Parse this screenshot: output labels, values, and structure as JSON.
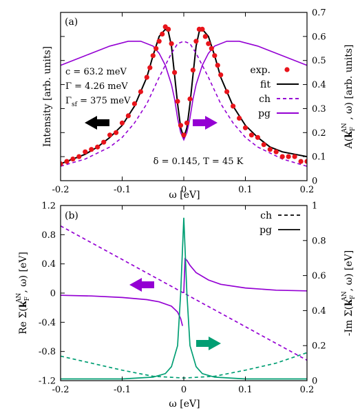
{
  "chart_data": [
    {
      "panel_label": "(a)",
      "type": "line",
      "xlabel": "ω [eV]",
      "ylabel_left": "Intensity [arb. units]",
      "ylabel_right": "A(kF^AN , ω) [arb. units]",
      "ylabel_right_parts": {
        "pre": "A(",
        "k": "k",
        "sub": "F",
        "sup": "AN",
        "post": " , ω) [arb. units]"
      },
      "xlim": [
        -0.2,
        0.2
      ],
      "y2lim": [
        0,
        0.7
      ],
      "x_ticks": [
        "-0.2",
        "-0.1",
        "0",
        "0.1",
        "0.2"
      ],
      "y2_ticks": [
        "0",
        "0.1",
        "0.2",
        "0.3",
        "0.4",
        "0.5",
        "0.6",
        "0.7"
      ],
      "legend": [
        {
          "label": "exp.",
          "style": "points",
          "color": "#e8141b"
        },
        {
          "label": "fit",
          "style": "solid",
          "color": "#000000"
        },
        {
          "label": "ch",
          "style": "dashed",
          "color": "#9400d3"
        },
        {
          "label": "pg",
          "style": "solid",
          "color": "#9400d3"
        }
      ],
      "params": {
        "c": "c = 63.2 meV",
        "gamma": "Γ = 4.26 meV",
        "gamma_sf_pre": "Γ",
        "gamma_sf_sub": "sf",
        "gamma_sf_post": " = 375 meV"
      },
      "annotation": "δ = 0.145, T = 45 K",
      "arrows": [
        {
          "direction": "left",
          "color": "#000000",
          "axis": "left"
        },
        {
          "direction": "right",
          "color": "#9400d3",
          "axis": "right"
        }
      ],
      "series": [
        {
          "name": "fit",
          "color": "#000000",
          "dash": false,
          "x": [
            -0.2,
            -0.18,
            -0.16,
            -0.14,
            -0.12,
            -0.1,
            -0.08,
            -0.06,
            -0.05,
            -0.04,
            -0.03,
            -0.025,
            -0.02,
            -0.015,
            -0.01,
            -0.005,
            0,
            0.005,
            0.01,
            0.015,
            0.02,
            0.025,
            0.03,
            0.04,
            0.05,
            0.06,
            0.08,
            0.1,
            0.12,
            0.14,
            0.16,
            0.18,
            0.2
          ],
          "y": [
            0.07,
            0.09,
            0.11,
            0.14,
            0.18,
            0.23,
            0.31,
            0.43,
            0.52,
            0.6,
            0.63,
            0.62,
            0.56,
            0.44,
            0.32,
            0.22,
            0.18,
            0.22,
            0.32,
            0.44,
            0.56,
            0.62,
            0.63,
            0.6,
            0.52,
            0.43,
            0.31,
            0.23,
            0.18,
            0.14,
            0.12,
            0.11,
            0.1
          ]
        },
        {
          "name": "ch",
          "color": "#9400d3",
          "dash": true,
          "x": [
            -0.2,
            -0.16,
            -0.12,
            -0.1,
            -0.08,
            -0.06,
            -0.04,
            -0.02,
            -0.01,
            0,
            0.01,
            0.02,
            0.04,
            0.06,
            0.08,
            0.1,
            0.12,
            0.16,
            0.2
          ],
          "y": [
            0.06,
            0.09,
            0.14,
            0.18,
            0.24,
            0.32,
            0.43,
            0.53,
            0.57,
            0.58,
            0.57,
            0.53,
            0.43,
            0.32,
            0.24,
            0.18,
            0.14,
            0.09,
            0.06
          ]
        },
        {
          "name": "pg",
          "color": "#9400d3",
          "dash": false,
          "x": [
            -0.2,
            -0.16,
            -0.12,
            -0.09,
            -0.07,
            -0.05,
            -0.04,
            -0.03,
            -0.02,
            -0.015,
            -0.01,
            -0.005,
            0,
            0.005,
            0.01,
            0.015,
            0.02,
            0.03,
            0.04,
            0.05,
            0.07,
            0.09,
            0.12,
            0.16,
            0.2
          ],
          "y": [
            0.48,
            0.52,
            0.56,
            0.58,
            0.58,
            0.56,
            0.53,
            0.48,
            0.4,
            0.34,
            0.26,
            0.2,
            0.17,
            0.2,
            0.26,
            0.34,
            0.4,
            0.48,
            0.53,
            0.56,
            0.58,
            0.58,
            0.56,
            0.52,
            0.48
          ]
        }
      ],
      "exp_points": {
        "name": "exp.",
        "color": "#e8141b",
        "x": [
          -0.2,
          -0.19,
          -0.18,
          -0.17,
          -0.16,
          -0.15,
          -0.14,
          -0.13,
          -0.12,
          -0.11,
          -0.1,
          -0.09,
          -0.08,
          -0.07,
          -0.06,
          -0.055,
          -0.05,
          -0.045,
          -0.04,
          -0.035,
          -0.03,
          -0.025,
          -0.02,
          -0.015,
          -0.01,
          -0.005,
          0,
          0.005,
          0.01,
          0.015,
          0.02,
          0.025,
          0.03,
          0.035,
          0.04,
          0.045,
          0.05,
          0.055,
          0.06,
          0.07,
          0.08,
          0.09,
          0.1,
          0.11,
          0.12,
          0.13,
          0.14,
          0.15,
          0.16,
          0.17,
          0.18,
          0.19,
          0.2
        ],
        "y": [
          0.07,
          0.08,
          0.09,
          0.1,
          0.12,
          0.13,
          0.14,
          0.16,
          0.19,
          0.2,
          0.24,
          0.27,
          0.32,
          0.37,
          0.43,
          0.47,
          0.52,
          0.55,
          0.58,
          0.61,
          0.64,
          0.63,
          0.57,
          0.45,
          0.33,
          0.23,
          0.19,
          0.24,
          0.34,
          0.46,
          0.58,
          0.63,
          0.63,
          0.6,
          0.57,
          0.55,
          0.52,
          0.48,
          0.44,
          0.37,
          0.31,
          0.26,
          0.22,
          0.19,
          0.18,
          0.15,
          0.13,
          0.12,
          0.1,
          0.1,
          0.1,
          0.08,
          0.08
        ]
      }
    },
    {
      "panel_label": "(b)",
      "type": "line",
      "xlabel": "ω [eV]",
      "ylabel_left_parts": {
        "pre": "Re Σ(",
        "k": "k",
        "sub": "F",
        "sup": "AN",
        "post": ", ω) [eV]"
      },
      "ylabel_right_parts": {
        "pre": "-Im Σ(",
        "k": "k",
        "sub": "F",
        "sup": "AN",
        "post": ", ω) [eV]"
      },
      "xlim": [
        -0.2,
        0.2
      ],
      "ylim": [
        -1.2,
        1.2
      ],
      "y2lim": [
        0,
        1
      ],
      "x_ticks": [
        "-0.2",
        "-0.1",
        "0",
        "0.1",
        "0.2"
      ],
      "y_ticks": [
        "-1.2",
        "-0.8",
        "-0.4",
        "0",
        "0.4",
        "0.8",
        "1.2"
      ],
      "y2_ticks": [
        "0",
        "0.2",
        "0.4",
        "0.6",
        "0.8",
        "1"
      ],
      "legend": [
        {
          "label": "ch",
          "style": "dashed",
          "color": "#000000"
        },
        {
          "label": "pg",
          "style": "solid",
          "color": "#000000"
        }
      ],
      "arrows": [
        {
          "direction": "left",
          "color": "#9400d3",
          "axis": "left"
        },
        {
          "direction": "right",
          "color": "#009e73",
          "axis": "right"
        }
      ],
      "series": [
        {
          "name": "ch",
          "quantity": "Re",
          "color": "#9400d3",
          "dash": true,
          "axis": "left",
          "x": [
            -0.2,
            -0.1,
            0,
            0.1,
            0.2
          ],
          "y": [
            0.92,
            0.46,
            0,
            -0.46,
            -0.92
          ]
        },
        {
          "name": "pg",
          "quantity": "Re",
          "color": "#9400d3",
          "dash": false,
          "axis": "left",
          "x": [
            -0.2,
            -0.15,
            -0.1,
            -0.06,
            -0.04,
            -0.02,
            -0.01,
            -0.005,
            -0.002,
            0,
            0.002,
            0.005,
            0.01,
            0.02,
            0.04,
            0.06,
            0.1,
            0.15,
            0.2
          ],
          "y": [
            -0.03,
            -0.04,
            -0.06,
            -0.09,
            -0.12,
            -0.18,
            -0.26,
            -0.35,
            -0.45,
            0,
            0.47,
            0.45,
            0.38,
            0.28,
            0.18,
            0.12,
            0.07,
            0.04,
            0.03
          ]
        },
        {
          "name": "ch",
          "quantity": "Im",
          "color": "#009e73",
          "dash": true,
          "axis": "right",
          "x": [
            -0.2,
            -0.15,
            -0.1,
            -0.05,
            0,
            0.05,
            0.1,
            0.15,
            0.2
          ],
          "y": [
            0.14,
            0.1,
            0.06,
            0.025,
            0.015,
            0.025,
            0.06,
            0.1,
            0.16
          ]
        },
        {
          "name": "pg",
          "quantity": "Im",
          "color": "#009e73",
          "dash": false,
          "axis": "right",
          "x": [
            -0.2,
            -0.1,
            -0.05,
            -0.03,
            -0.02,
            -0.01,
            -0.005,
            0,
            0.005,
            0.01,
            0.02,
            0.03,
            0.05,
            0.1,
            0.2
          ],
          "y": [
            0.01,
            0.01,
            0.02,
            0.04,
            0.08,
            0.2,
            0.5,
            0.93,
            0.5,
            0.2,
            0.08,
            0.04,
            0.02,
            0.01,
            0.01
          ]
        }
      ]
    }
  ]
}
